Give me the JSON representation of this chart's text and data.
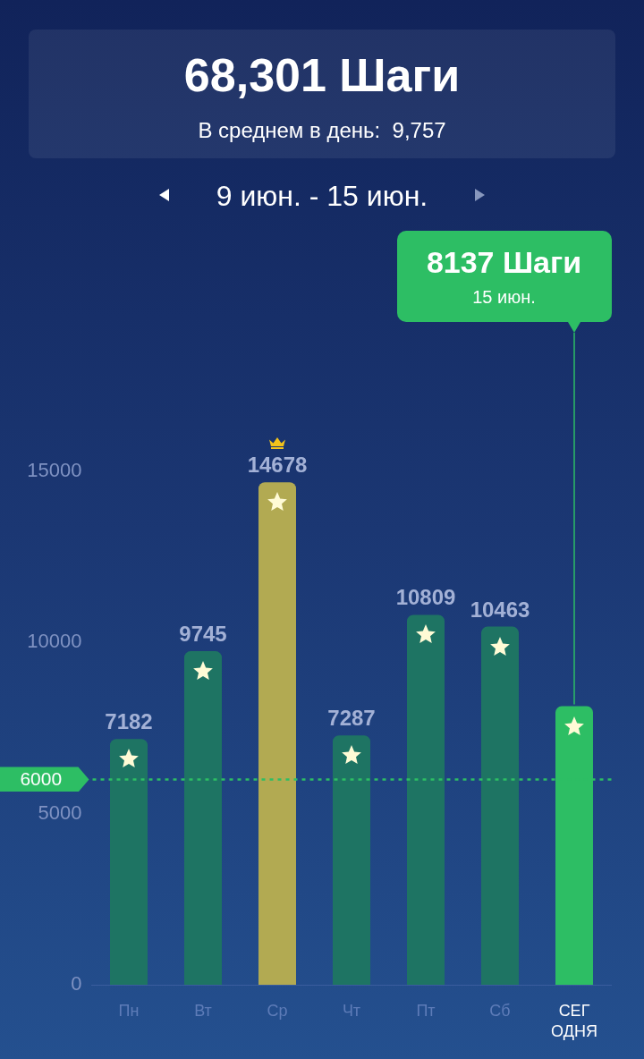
{
  "chart_data": {
    "type": "bar",
    "title": "68,301 Шаги",
    "subtitle": "В среднем в день:  9,757",
    "categories": [
      "Пн",
      "Вт",
      "Ср",
      "Чт",
      "Пт",
      "Сб",
      "СЕГ\nОДНЯ"
    ],
    "values": [
      7182,
      9745,
      14678,
      7287,
      10809,
      10463,
      8137
    ],
    "colors": [
      "#1e7463",
      "#1e7463",
      "#b2aa52",
      "#1e7463",
      "#1e7463",
      "#1e7463",
      "#2dbe64"
    ],
    "value_labels": [
      "7182",
      "9745",
      "14678",
      "7287",
      "10809",
      "10463",
      null
    ],
    "ylim": [
      0,
      15000
    ],
    "yticks": [
      0,
      5000,
      10000,
      15000
    ],
    "ref_lines": [
      {
        "axis": "y",
        "value": 6000,
        "label": "6000",
        "color": "#2dbe64",
        "line_style": "dotted"
      }
    ],
    "annotations": [
      "9 июн. - 15 июн.",
      {
        "text": "8137 Шаги\n15 июн.",
        "x": "СЕГ\nОДНЯ",
        "y": 8137
      }
    ]
  }
}
